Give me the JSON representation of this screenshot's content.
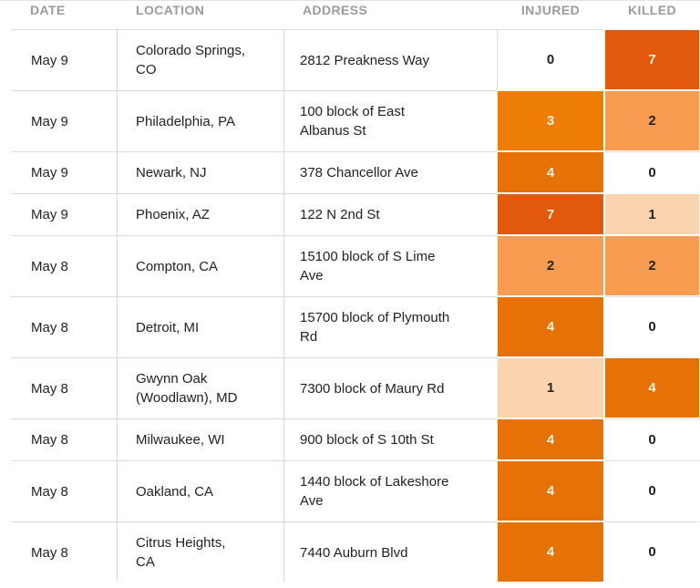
{
  "chart_data": {
    "type": "table",
    "columns": [
      "DATE",
      "LOCATION",
      "ADDRESS",
      "INJURED",
      "KILLED"
    ],
    "rows": [
      {
        "date": "May 9",
        "location": "Colorado Springs,\nCO",
        "address": "2812 Preakness Way",
        "injured": "0",
        "killed": "7"
      },
      {
        "date": "May 9",
        "location": "Philadelphia, PA",
        "address": "100 block of East\nAlbanus St",
        "injured": "3",
        "killed": "2"
      },
      {
        "date": "May 9",
        "location": "Newark, NJ",
        "address": "378 Chancellor Ave",
        "injured": "4",
        "killed": "0"
      },
      {
        "date": "May 9",
        "location": "Phoenix, AZ",
        "address": "122 N 2nd St",
        "injured": "7",
        "killed": "1"
      },
      {
        "date": "May 8",
        "location": "Compton, CA",
        "address": "15100 block of S Lime\nAve",
        "injured": "2",
        "killed": "2"
      },
      {
        "date": "May 8",
        "location": "Detroit, MI",
        "address": "15700 block of Plymouth\nRd",
        "injured": "4",
        "killed": "0"
      },
      {
        "date": "May 8",
        "location": "Gwynn Oak\n(Woodlawn), MD",
        "address": "7300 block of Maury Rd",
        "injured": "1",
        "killed": "4"
      },
      {
        "date": "May 8",
        "location": "Milwaukee, WI",
        "address": "900 block of S 10th St",
        "injured": "4",
        "killed": "0"
      },
      {
        "date": "May 8",
        "location": "Oakland, CA",
        "address": "1440 block of Lakeshore\nAve",
        "injured": "4",
        "killed": "0"
      },
      {
        "date": "May 8",
        "location": "Citrus Heights,\nCA",
        "address": "7440 Auburn Blvd",
        "injured": "4",
        "killed": "0"
      }
    ]
  },
  "heatmap_colors": {
    "0": {
      "bg": "#ffffff",
      "fg": "#222222"
    },
    "1": {
      "bg": "#fad4ae",
      "fg": "#222222"
    },
    "2": {
      "bg": "#f89c51",
      "fg": "#222222"
    },
    "3": {
      "bg": "#ee7d05",
      "fg": "#fdf4e4"
    },
    "4": {
      "bg": "#e67104",
      "fg": "#fdf4e4"
    },
    "7": {
      "bg": "#e2590e",
      "fg": "#fdf4e4"
    }
  }
}
